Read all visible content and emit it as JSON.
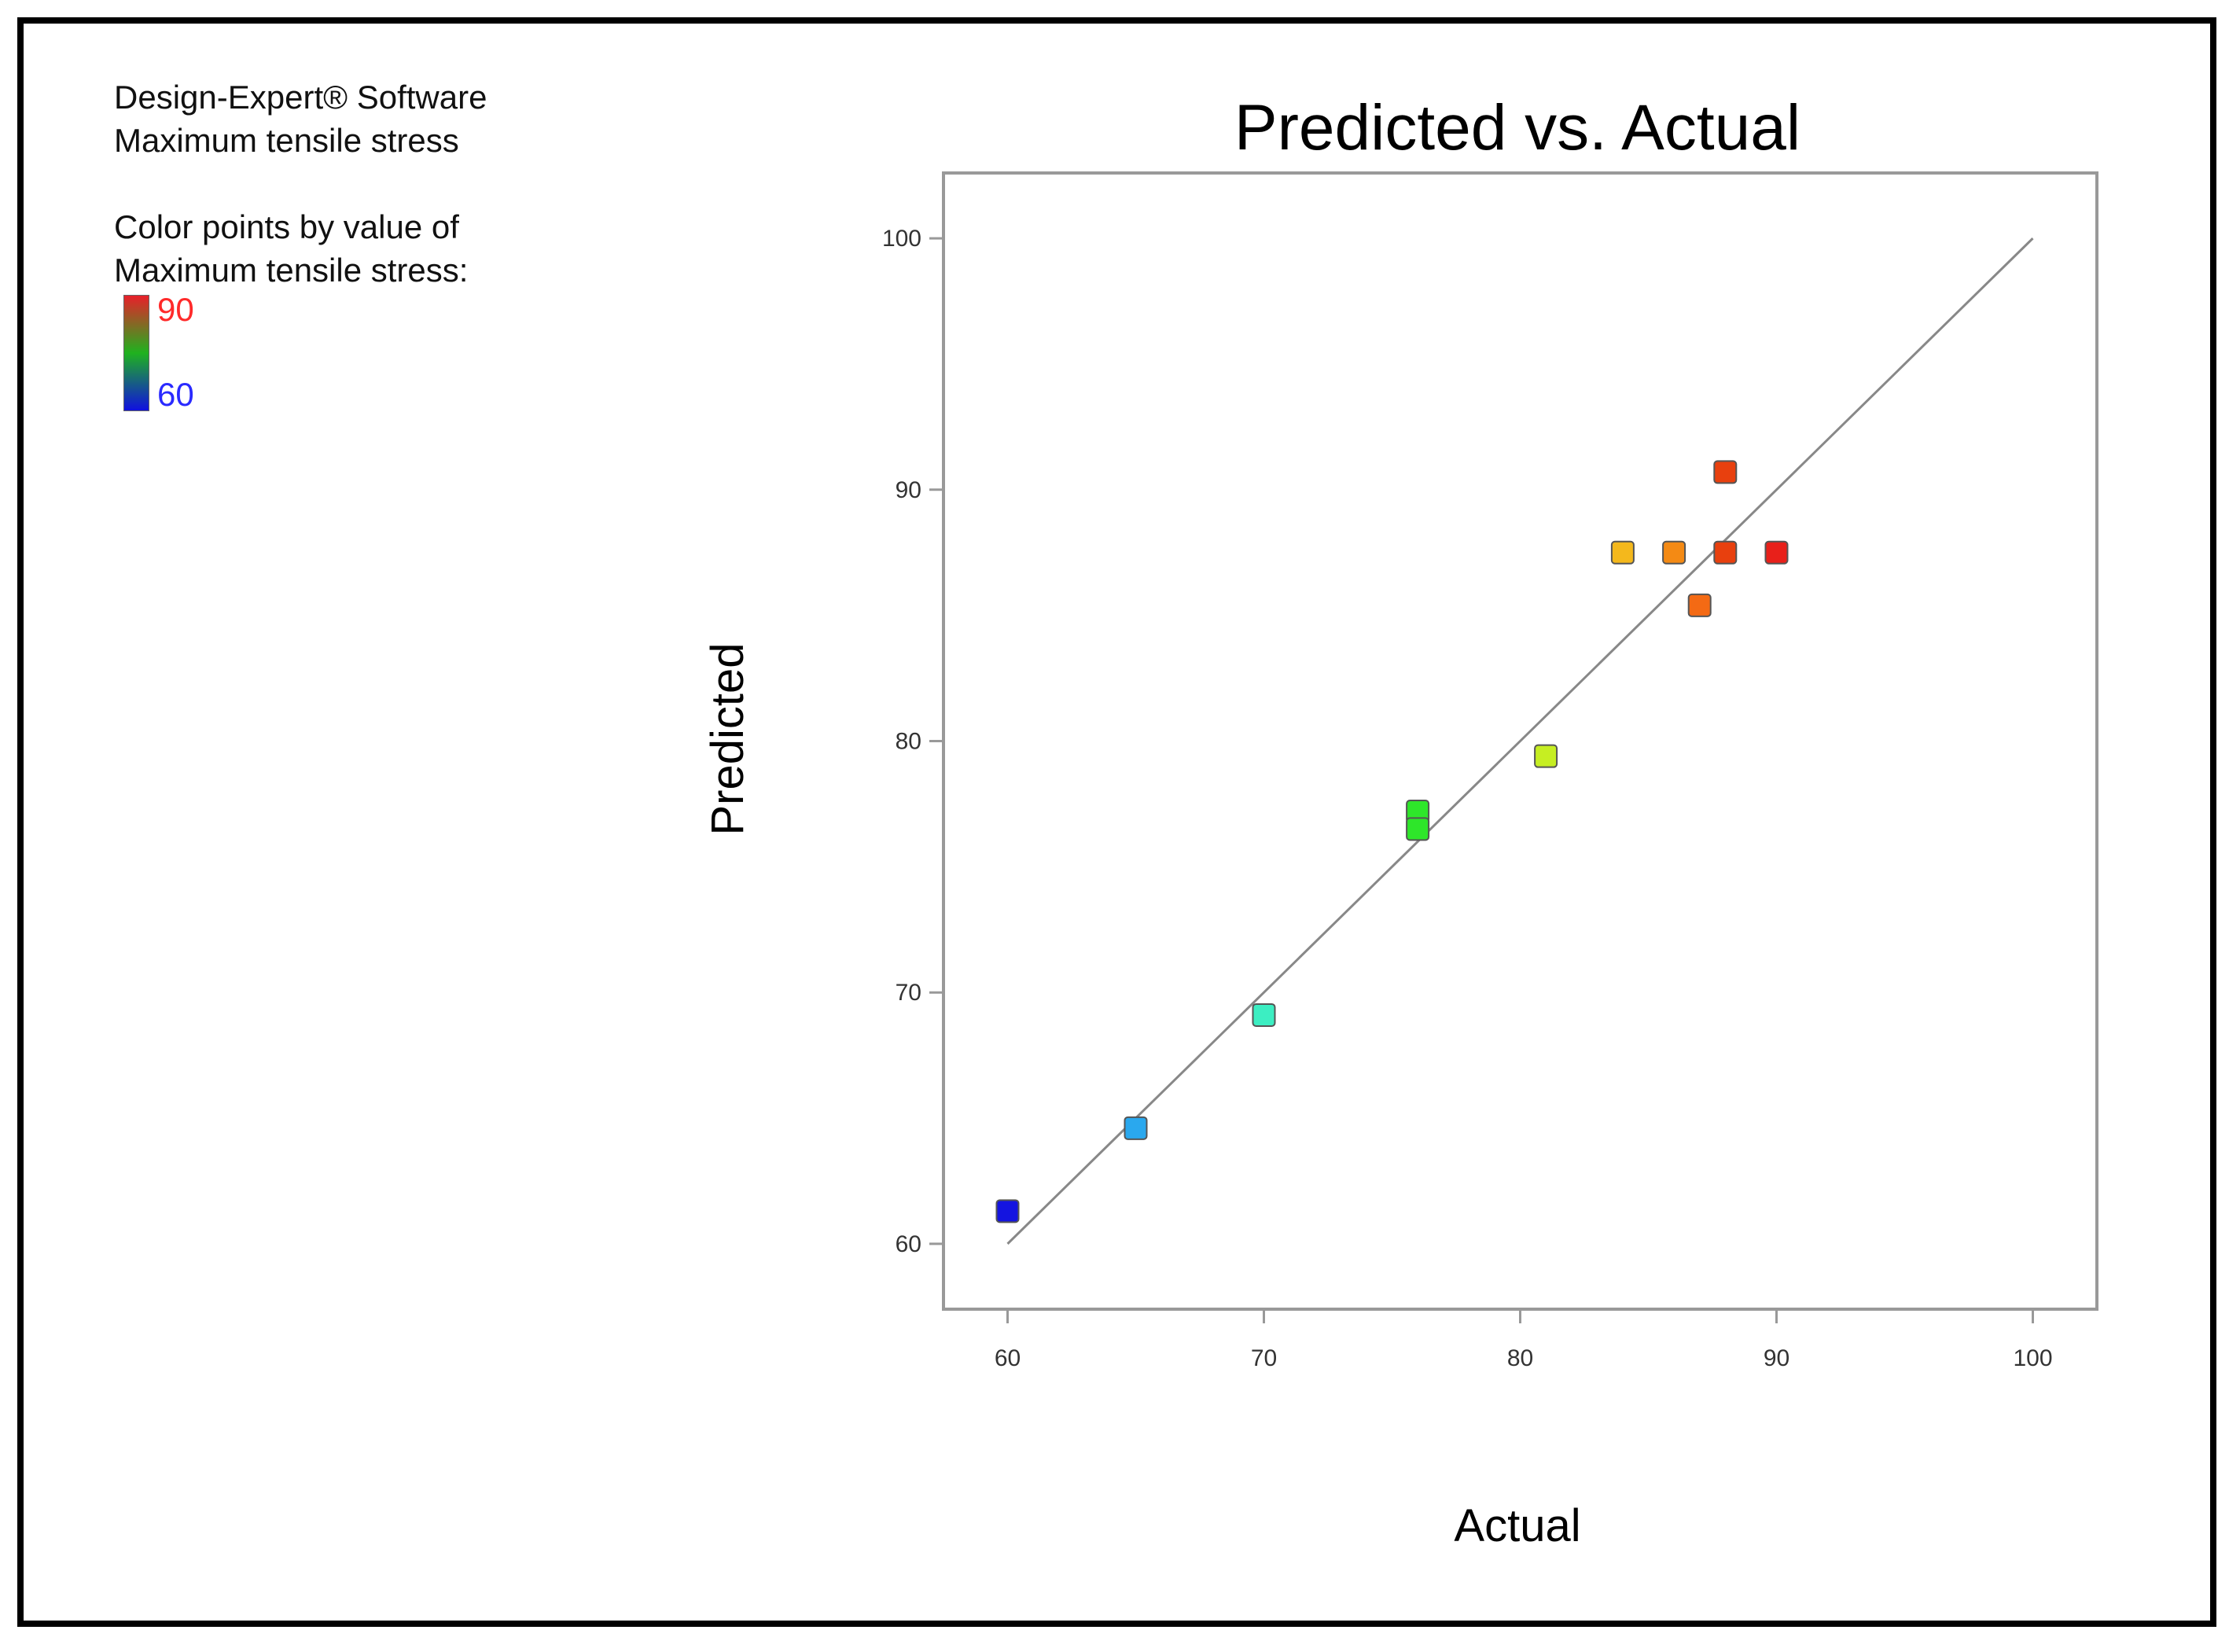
{
  "info": {
    "line1": "Design-Expert® Software",
    "line2": "Maximum tensile stress",
    "line3": "Color points by value of",
    "line4": "Maximum tensile stress:"
  },
  "legend": {
    "high_label": "90",
    "low_label": "60",
    "high_color": "#ff2a2a",
    "low_color": "#2a2aff",
    "gradient": [
      "#e8202a",
      "#1fb21f",
      "#1010e0"
    ]
  },
  "chart_data": {
    "type": "scatter",
    "title": "Predicted vs. Actual",
    "xlabel": "Actual",
    "ylabel": "Predicted",
    "xlim": [
      57.5,
      102.5
    ],
    "ylim": [
      57.4,
      102.6
    ],
    "xticks": [
      60,
      70,
      80,
      90,
      100
    ],
    "yticks": [
      60,
      70,
      80,
      90,
      100
    ],
    "reference_line": {
      "from": [
        60,
        60
      ],
      "to": [
        100,
        100
      ],
      "color": "#888888"
    },
    "points": [
      {
        "x": 60,
        "y": 61.3,
        "color": "#1414e0"
      },
      {
        "x": 65,
        "y": 64.6,
        "color": "#2aa8ee"
      },
      {
        "x": 70,
        "y": 69.1,
        "color": "#3ceec2"
      },
      {
        "x": 76,
        "y": 77.2,
        "color": "#2ee62a"
      },
      {
        "x": 76,
        "y": 76.5,
        "color": "#2ee62a"
      },
      {
        "x": 81,
        "y": 79.4,
        "color": "#c6ee22"
      },
      {
        "x": 84,
        "y": 87.5,
        "color": "#f4b81c"
      },
      {
        "x": 86,
        "y": 87.5,
        "color": "#f48a14"
      },
      {
        "x": 87,
        "y": 85.4,
        "color": "#f46a14"
      },
      {
        "x": 88,
        "y": 87.5,
        "color": "#e8400e"
      },
      {
        "x": 88,
        "y": 90.7,
        "color": "#e8400e"
      },
      {
        "x": 90,
        "y": 87.5,
        "color": "#e8201a"
      }
    ]
  }
}
